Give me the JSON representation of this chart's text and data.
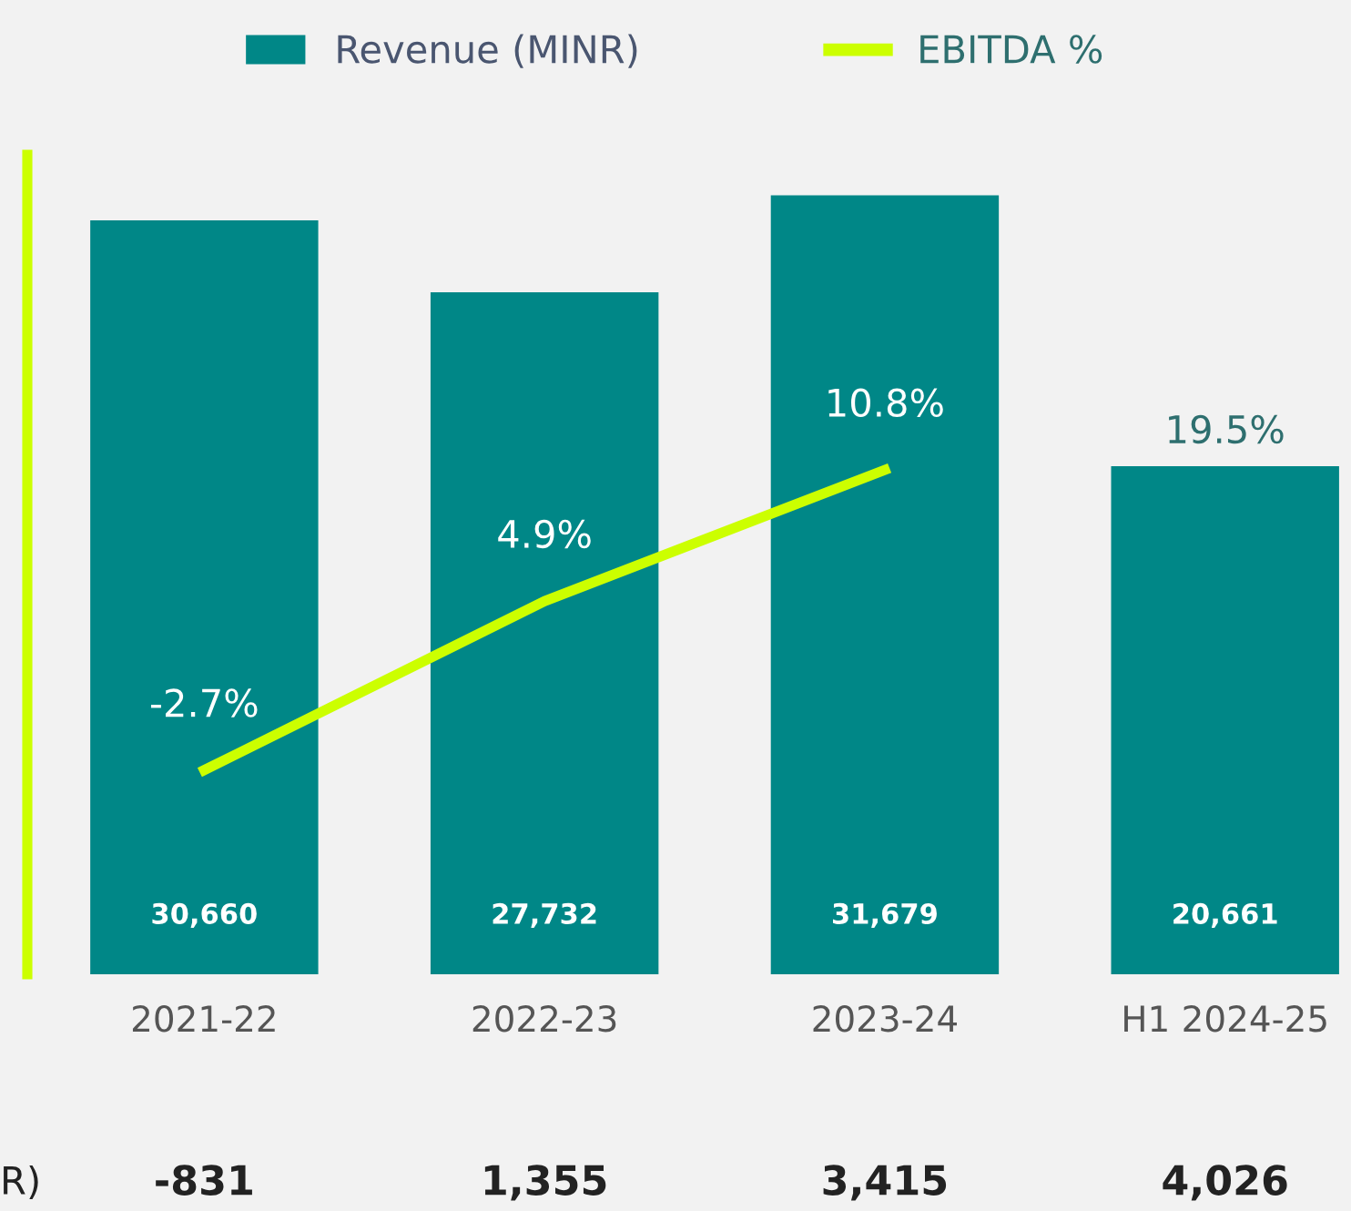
{
  "chart_data": {
    "type": "bar",
    "categories": [
      "2021-22",
      "2022-23",
      "2023-24",
      "H1 2024-25"
    ],
    "series": [
      {
        "name": "Revenue (MINR)",
        "color": "#008787",
        "values": [
          30660,
          27732,
          31679,
          20661
        ],
        "value_labels": [
          "30,660",
          "27,732",
          "31,679",
          "20,661"
        ]
      },
      {
        "name": "EBITDA %",
        "type": "line",
        "axis": "y2",
        "color": "#ccff00",
        "values": [
          -2.7,
          4.9,
          10.8,
          null
        ],
        "value_labels": [
          "-2.7%",
          "4.9%",
          "10.8%",
          null
        ]
      }
    ],
    "annotations": [
      "19.5%",
      "R)",
      "-831",
      "1,355",
      "3,415",
      "4,026"
    ],
    "legend": "top",
    "grid": false,
    "marker": "none",
    "line_style": "solid",
    "tick_labels": "x"
  }
}
